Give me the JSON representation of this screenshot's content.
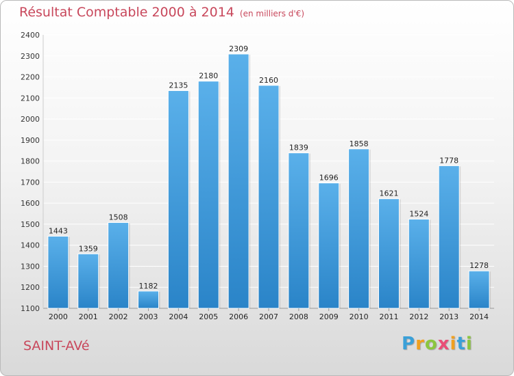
{
  "chart_data": {
    "type": "bar",
    "title": "Résultat Comptable 2000 à 2014",
    "subtitle": "(en milliers d'€)",
    "categories": [
      "2000",
      "2001",
      "2002",
      "2003",
      "2004",
      "2005",
      "2006",
      "2007",
      "2008",
      "2009",
      "2010",
      "2011",
      "2012",
      "2013",
      "2014"
    ],
    "values": [
      1443,
      1359,
      1508,
      1182,
      2135,
      2180,
      2309,
      2160,
      1839,
      1696,
      1858,
      1621,
      1524,
      1778,
      1278
    ],
    "ylim": [
      1100,
      2400
    ],
    "yticks": [
      1100,
      1200,
      1300,
      1400,
      1500,
      1600,
      1700,
      1800,
      1900,
      2000,
      2100,
      2200,
      2300,
      2400
    ],
    "grid": true,
    "xlabel": "",
    "ylabel": ""
  },
  "location": "SAINT-AVé",
  "brand": {
    "letters": [
      "P",
      "r",
      "o",
      "x",
      "i",
      "t",
      "i"
    ],
    "colors": [
      "#3aa0d8",
      "#f0a020",
      "#8cc63f",
      "#e94e77",
      "#f0a020",
      "#3aa0d8",
      "#8cc63f"
    ]
  },
  "colors": {
    "bar_light": "#5ab0ea",
    "bar_dark": "#2a84c8",
    "title": "#c8475b",
    "grid": "#ffffff"
  }
}
